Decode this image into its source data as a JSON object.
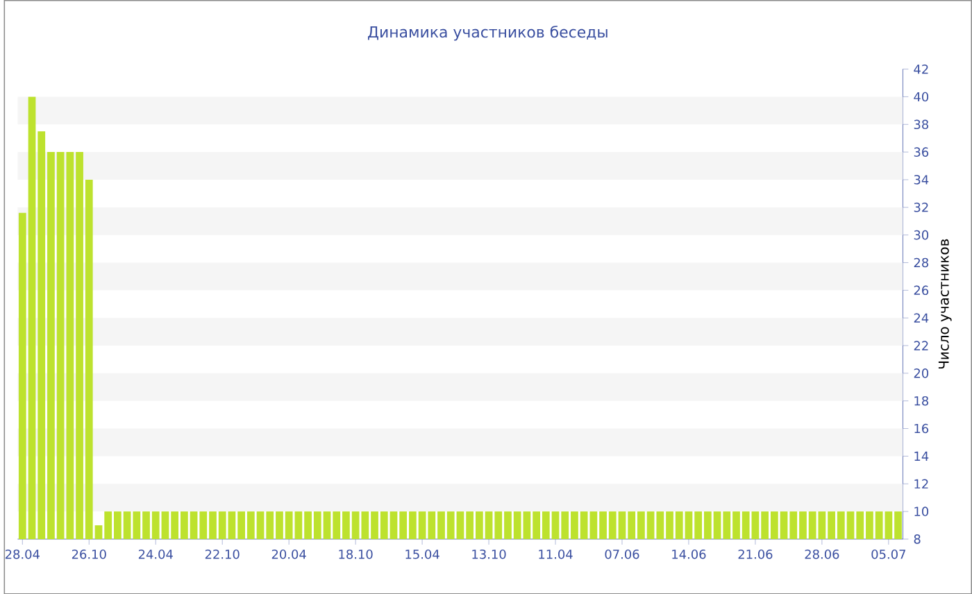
{
  "chart_data": {
    "type": "bar",
    "title": "Динамика участников беседы",
    "ylabel": "Число участников",
    "categories": [
      "28.04",
      null,
      null,
      null,
      null,
      null,
      null,
      "26.10",
      null,
      null,
      null,
      null,
      null,
      null,
      "24.04",
      null,
      null,
      null,
      null,
      null,
      null,
      "22.10",
      null,
      null,
      null,
      null,
      null,
      null,
      "20.04",
      null,
      null,
      null,
      null,
      null,
      null,
      "18.10",
      null,
      null,
      null,
      null,
      null,
      null,
      "15.04",
      null,
      null,
      null,
      null,
      null,
      null,
      "13.10",
      null,
      null,
      null,
      null,
      null,
      null,
      "11.04",
      null,
      null,
      null,
      null,
      null,
      null,
      "07.06",
      null,
      null,
      null,
      null,
      null,
      null,
      "14.06",
      null,
      null,
      null,
      null,
      null,
      null,
      "21.06",
      null,
      null,
      null,
      null,
      null,
      null,
      "28.06",
      null,
      null,
      null,
      null,
      null,
      null,
      "05.07",
      null
    ],
    "values": [
      31.6,
      40,
      37.5,
      36,
      36,
      36,
      36,
      34,
      9,
      10,
      10,
      10,
      10,
      10,
      10,
      10,
      10,
      10,
      10,
      10,
      10,
      10,
      10,
      10,
      10,
      10,
      10,
      10,
      10,
      10,
      10,
      10,
      10,
      10,
      10,
      10,
      10,
      10,
      10,
      10,
      10,
      10,
      10,
      10,
      10,
      10,
      10,
      10,
      10,
      10,
      10,
      10,
      10,
      10,
      10,
      10,
      10,
      10,
      10,
      10,
      10,
      10,
      10,
      10,
      10,
      10,
      10,
      10,
      10,
      10,
      10,
      10,
      10,
      10,
      10,
      10,
      10,
      10,
      10,
      10,
      10,
      10,
      10,
      10,
      10,
      10,
      10,
      10,
      10,
      10,
      10,
      10,
      10
    ],
    "color": "#bde22e",
    "ylim": [
      8,
      42
    ],
    "yticks": [
      8,
      10,
      12,
      14,
      16,
      18,
      20,
      22,
      24,
      26,
      28,
      30,
      32,
      34,
      36,
      38,
      40,
      42
    ]
  }
}
